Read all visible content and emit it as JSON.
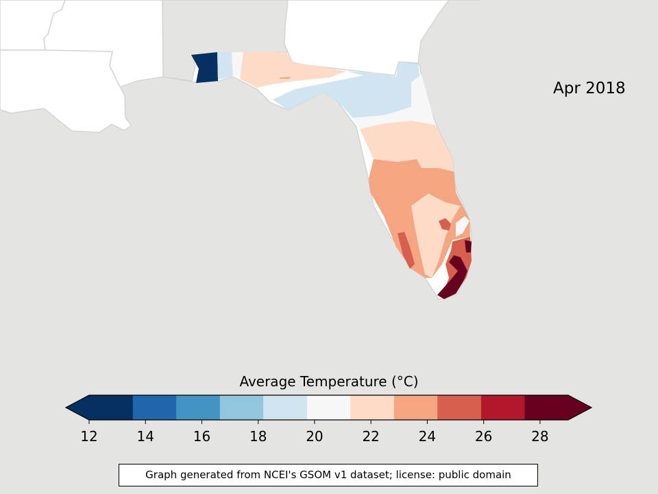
{
  "map": {
    "date_label": "Apr 2018",
    "background_color": "#e4e4e3",
    "land_color": "#ffffff",
    "border_color": "#d0d0d0"
  },
  "colorbar": {
    "title": "Average Temperature (°C)",
    "min": 12,
    "max": 29,
    "ticks": [
      12,
      14,
      16,
      18,
      20,
      22,
      24,
      26,
      28
    ],
    "bins": [
      {
        "from": 12.0,
        "to": 13.55,
        "color": "#053061"
      },
      {
        "from": 13.55,
        "to": 15.09,
        "color": "#2166ac"
      },
      {
        "from": 15.09,
        "to": 16.64,
        "color": "#4393c3"
      },
      {
        "from": 16.64,
        "to": 18.18,
        "color": "#92c5de"
      },
      {
        "from": 18.18,
        "to": 19.73,
        "color": "#d1e5f0"
      },
      {
        "from": 19.73,
        "to": 21.27,
        "color": "#f7f7f7"
      },
      {
        "from": 21.27,
        "to": 22.82,
        "color": "#fddbc7"
      },
      {
        "from": 22.82,
        "to": 24.36,
        "color": "#f4a582"
      },
      {
        "from": 24.36,
        "to": 25.91,
        "color": "#d6604d"
      },
      {
        "from": 25.91,
        "to": 27.45,
        "color": "#b2182b"
      },
      {
        "from": 27.45,
        "to": 29.0,
        "color": "#67001f"
      }
    ],
    "under_color": "#053061",
    "over_color": "#67001f"
  },
  "attribution": "Graph generated from NCEI's GSOM v1 dataset; license: public domain"
}
